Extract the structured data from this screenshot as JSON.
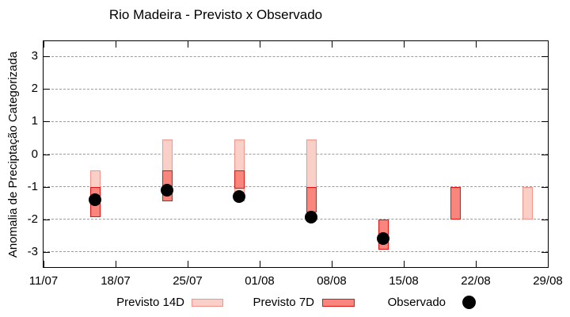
{
  "title": "Rio Madeira - Previsto x Observado",
  "chart_data": {
    "type": "bar",
    "subtype": "weekly forecast range bars with observed scatter dots",
    "title": "Rio Madeira - Previsto x Observado",
    "xlabel": "",
    "ylabel": "Anomalia de Preciptação Categorizada",
    "ylim": [
      -3.5,
      3.5
    ],
    "y_ticks": [
      3,
      2,
      1,
      0,
      -1,
      -2,
      -3
    ],
    "x_ticks": {
      "labels": [
        "11/07",
        "18/07",
        "25/07",
        "01/08",
        "08/08",
        "15/08",
        "22/08",
        "29/08"
      ],
      "days": [
        0,
        7,
        14,
        21,
        28,
        35,
        42,
        49
      ]
    },
    "x_range_days": [
      0,
      49
    ],
    "grid": "horizontal dashed lines at integer y values",
    "legend_position": "bottom",
    "colors": {
      "previsto_14d_fill": "#f9cfc7",
      "previsto_14d_border": "#f1948a",
      "previsto_7d_fill": "#f9867c",
      "previsto_7d_border": "#e31313",
      "observado": "#000000",
      "gridline": "#9b9b9b"
    },
    "series": [
      {
        "name": "Previsto 14D",
        "type": "range-bar",
        "points": [
          {
            "date": "16/07",
            "day": 5,
            "low": -1.95,
            "high": -0.5
          },
          {
            "date": "23/07",
            "day": 12,
            "low": -1.45,
            "high": 0.45
          },
          {
            "date": "30/07",
            "day": 19,
            "low": -1.45,
            "high": 0.45
          },
          {
            "date": "06/08",
            "day": 26,
            "low": -1.8,
            "high": 0.45
          },
          {
            "date": "27/08",
            "day": 47,
            "low": -2.0,
            "high": -1.0
          }
        ]
      },
      {
        "name": "Previsto 7D",
        "type": "range-bar",
        "points": [
          {
            "date": "16/07",
            "day": 5,
            "low": -1.95,
            "high": -1.0
          },
          {
            "date": "23/07",
            "day": 12,
            "low": -1.45,
            "high": -0.5
          },
          {
            "date": "30/07",
            "day": 19,
            "low": -1.05,
            "high": -0.5
          },
          {
            "date": "06/08",
            "day": 26,
            "low": -1.8,
            "high": -1.0
          },
          {
            "date": "13/08",
            "day": 33,
            "low": -2.95,
            "high": -2.0
          },
          {
            "date": "20/08",
            "day": 40,
            "low": -2.0,
            "high": -1.0
          }
        ]
      },
      {
        "name": "Observado",
        "type": "scatter",
        "points": [
          {
            "date": "16/07",
            "day": 5,
            "y": -1.4
          },
          {
            "date": "23/07",
            "day": 12,
            "y": -1.1
          },
          {
            "date": "30/07",
            "day": 19,
            "y": -1.3
          },
          {
            "date": "06/08",
            "day": 26,
            "y": -1.95
          },
          {
            "date": "13/08",
            "day": 33,
            "y": -2.6
          }
        ]
      }
    ]
  }
}
